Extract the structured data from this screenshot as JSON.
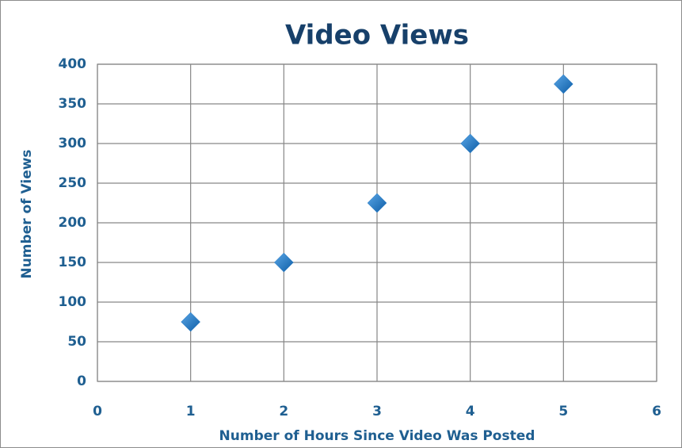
{
  "chart_data": {
    "type": "scatter",
    "title": "Video Views",
    "x_label": "Number of Hours Since Video Was Posted",
    "y_label": "Number of Views",
    "x": [
      1,
      2,
      3,
      4,
      5
    ],
    "values": [
      75,
      150,
      225,
      300,
      375
    ],
    "color": "#1f77c4",
    "xlim": [
      0,
      6
    ],
    "xticks": [
      0,
      1,
      2,
      3,
      4,
      5,
      6
    ],
    "ylim": [
      0,
      400
    ],
    "yticks": [
      0,
      50,
      100,
      150,
      200,
      250,
      300,
      350,
      400
    ],
    "grid": true
  }
}
